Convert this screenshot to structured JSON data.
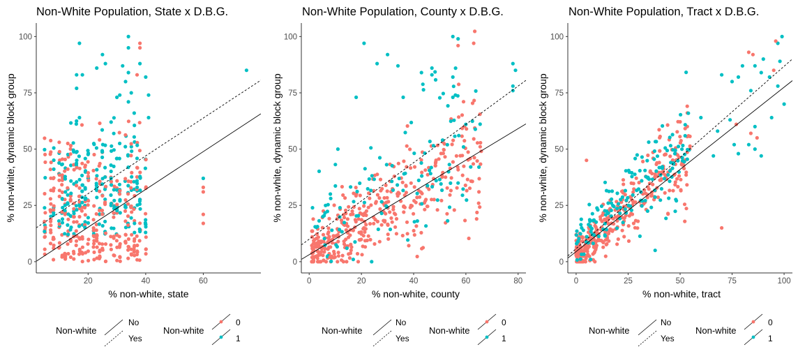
{
  "colors": {
    "group0": "#F8766D",
    "group1": "#00BFC4",
    "line": "#000000",
    "axis": "#333333"
  },
  "legend": {
    "line_title": "Non-white",
    "line_items": [
      "No",
      "Yes"
    ],
    "point_title": "Non-white",
    "point_items": [
      "0",
      "1"
    ]
  },
  "chart_data": [
    {
      "type": "scatter",
      "title": "Non-White Population, State x D.B.G.",
      "xlabel": "% non-white, state",
      "ylabel": "% non-white, dynamic block group",
      "xlim": [
        2,
        80
      ],
      "ylim": [
        -5,
        106
      ],
      "xticks": [
        20,
        40,
        60
      ],
      "yticks": [
        0,
        25,
        50,
        75,
        100
      ],
      "fit_lines": [
        {
          "name": "No",
          "style": "solid",
          "intercept": -1.5,
          "slope": 0.84
        },
        {
          "name": "Yes",
          "style": "dashed",
          "intercept": 13.4,
          "slope": 0.84
        }
      ],
      "x_values": [
        5,
        7,
        8,
        10,
        11,
        12,
        13,
        14,
        15,
        16,
        17,
        18,
        19,
        20,
        22,
        23,
        24,
        25,
        26,
        28,
        29,
        30,
        31,
        33,
        34,
        35,
        36,
        37,
        38,
        40
      ],
      "columns": [
        [
          0,
          0.3
        ],
        [
          0.1,
          0.1
        ],
        [
          0,
          0.3
        ],
        [
          0.05,
          0.3
        ],
        [
          0,
          0.35
        ],
        [
          0.05,
          0.4
        ],
        [
          0.05,
          0.4
        ],
        [
          0,
          0.45
        ],
        [
          0.1,
          0.45
        ],
        [
          0.1,
          0.55
        ],
        [
          0,
          0.5
        ],
        [
          0.05,
          0.6
        ],
        [
          0.1,
          0.5
        ],
        [
          0,
          0.55
        ],
        [
          0.05,
          0.55
        ],
        [
          0.05,
          0.55
        ],
        [
          0.1,
          0.55
        ],
        [
          0.1,
          0.6
        ],
        [
          0,
          0.6
        ],
        [
          0.15,
          0.6
        ],
        [
          0.1,
          0.65
        ],
        [
          0.2,
          0.55
        ],
        [
          0.2,
          0.6
        ],
        [
          0.05,
          0.55
        ],
        [
          0.15,
          0.55
        ],
        [
          0.1,
          0.6
        ],
        [
          0.1,
          0.65
        ],
        [
          0.05,
          0.65
        ],
        [
          0.1,
          0.65
        ],
        [
          0.2,
          0.6
        ]
      ],
      "extra_points": [
        {
          "x": 17,
          "y": 97,
          "g": 1
        },
        {
          "x": 16,
          "y": 83,
          "g": 1
        },
        {
          "x": 16,
          "y": 77,
          "g": 1
        },
        {
          "x": 18,
          "y": 83,
          "g": 1
        },
        {
          "x": 17,
          "y": 64,
          "g": 1
        },
        {
          "x": 23,
          "y": 86,
          "g": 1
        },
        {
          "x": 25,
          "y": 92,
          "g": 1
        },
        {
          "x": 26,
          "y": 88,
          "g": 1
        },
        {
          "x": 28,
          "y": 62,
          "g": 1
        },
        {
          "x": 30,
          "y": 73,
          "g": 1
        },
        {
          "x": 31,
          "y": 74,
          "g": 1
        },
        {
          "x": 32,
          "y": 87,
          "g": 1
        },
        {
          "x": 33,
          "y": 80,
          "g": 1
        },
        {
          "x": 34,
          "y": 100,
          "g": 1
        },
        {
          "x": 34,
          "y": 95,
          "g": 1
        },
        {
          "x": 34,
          "y": 84,
          "g": 1
        },
        {
          "x": 34,
          "y": 71,
          "g": 1
        },
        {
          "x": 35,
          "y": 75,
          "g": 1
        },
        {
          "x": 36,
          "y": 66,
          "g": 1
        },
        {
          "x": 37,
          "y": 83,
          "g": 0
        },
        {
          "x": 38,
          "y": 97,
          "g": 0
        },
        {
          "x": 38,
          "y": 95,
          "g": 0
        },
        {
          "x": 38,
          "y": 88,
          "g": 1
        },
        {
          "x": 40,
          "y": 82,
          "g": 1
        },
        {
          "x": 41,
          "y": 74,
          "g": 1
        },
        {
          "x": 41,
          "y": 64,
          "g": 1
        },
        {
          "x": 75,
          "y": 85,
          "g": 1
        },
        {
          "x": 60,
          "y": 37,
          "g": 1
        },
        {
          "x": 60,
          "y": 33,
          "g": 0
        },
        {
          "x": 60,
          "y": 31,
          "g": 0
        },
        {
          "x": 60,
          "y": 21,
          "g": 0
        },
        {
          "x": 60,
          "y": 17,
          "g": 0
        },
        {
          "x": 12,
          "y": 25,
          "g": 1
        },
        {
          "x": 11,
          "y": 28,
          "g": 1
        },
        {
          "x": 8,
          "y": 23,
          "g": 0
        }
      ]
    },
    {
      "type": "scatter",
      "title": "Non-White Population, County x D.B.G.",
      "xlabel": "% non-white, county",
      "ylabel": "% non-white, dynamic block group",
      "xlim": [
        -3,
        83
      ],
      "ylim": [
        -5,
        106
      ],
      "xticks": [
        0,
        20,
        40,
        60,
        80
      ],
      "yticks": [
        0,
        25,
        50,
        75,
        100
      ],
      "fit_lines": [
        {
          "name": "No",
          "style": "solid",
          "intercept": 3.1,
          "slope": 0.7
        },
        {
          "name": "Yes",
          "style": "dashed",
          "intercept": 10.0,
          "slope": 0.85
        }
      ],
      "cloud": {
        "seed": 7,
        "n0": 420,
        "n1": 120,
        "x_range": [
          1,
          66
        ],
        "intercept": 3.1,
        "slope": 0.7,
        "spread0": 10,
        "spread1": 14,
        "offset1": 10
      },
      "extra_points": [
        {
          "x": 55,
          "y": 100,
          "g": 1
        },
        {
          "x": 57,
          "y": 99,
          "g": 1
        },
        {
          "x": 57,
          "y": 96,
          "g": 0
        },
        {
          "x": 63,
          "y": 97,
          "g": 0
        },
        {
          "x": 21,
          "y": 97,
          "g": 1
        },
        {
          "x": 26,
          "y": 88,
          "g": 1
        },
        {
          "x": 30,
          "y": 92,
          "g": 1
        },
        {
          "x": 34,
          "y": 87,
          "g": 1
        },
        {
          "x": 43,
          "y": 84,
          "g": 1
        },
        {
          "x": 47,
          "y": 83,
          "g": 1
        },
        {
          "x": 47,
          "y": 86,
          "g": 1
        },
        {
          "x": 18,
          "y": 73,
          "g": 1
        },
        {
          "x": 36,
          "y": 73,
          "g": 1
        },
        {
          "x": 55,
          "y": 73,
          "g": 1
        },
        {
          "x": 56,
          "y": 74,
          "g": 1
        },
        {
          "x": 55,
          "y": 82,
          "g": 1
        },
        {
          "x": 78,
          "y": 88,
          "g": 1
        },
        {
          "x": 79,
          "y": 85,
          "g": 1
        },
        {
          "x": 78,
          "y": 78,
          "g": 1
        },
        {
          "x": 78,
          "y": 76,
          "g": 1
        },
        {
          "x": 65,
          "y": 31,
          "g": 0
        },
        {
          "x": 65,
          "y": 42,
          "g": 1
        },
        {
          "x": 11,
          "y": 50,
          "g": 1
        },
        {
          "x": 8,
          "y": 2,
          "g": 0
        }
      ]
    },
    {
      "type": "scatter",
      "title": "Non-White Population, Tract x D.B.G.",
      "xlabel": "% non-white, tract",
      "ylabel": "% non-white, dynamic block group",
      "xlim": [
        -4,
        104
      ],
      "ylim": [
        -5,
        106
      ],
      "xticks": [
        0,
        25,
        50,
        75,
        100
      ],
      "yticks": [
        0,
        25,
        50,
        75,
        100
      ],
      "fit_lines": [
        {
          "name": "No",
          "style": "solid",
          "intercept": 4.5,
          "slope": 0.73
        },
        {
          "name": "Yes",
          "style": "dashed",
          "intercept": 5.8,
          "slope": 0.81
        }
      ],
      "cloud": {
        "seed": 13,
        "n0": 380,
        "n1": 160,
        "x_range": [
          0,
          55
        ],
        "intercept": 3,
        "slope": 0.85,
        "spread0": 7,
        "spread1": 8,
        "offset1": 5
      },
      "extra_points": [
        {
          "x": 99,
          "y": 100,
          "g": 1
        },
        {
          "x": 97,
          "y": 97,
          "g": 1
        },
        {
          "x": 96,
          "y": 98,
          "g": 0
        },
        {
          "x": 90,
          "y": 90,
          "g": 1
        },
        {
          "x": 89,
          "y": 84,
          "g": 1
        },
        {
          "x": 93,
          "y": 82,
          "g": 1
        },
        {
          "x": 95,
          "y": 85,
          "g": 0
        },
        {
          "x": 98,
          "y": 89,
          "g": 1
        },
        {
          "x": 97,
          "y": 78,
          "g": 1
        },
        {
          "x": 100,
          "y": 70,
          "g": 1
        },
        {
          "x": 94,
          "y": 64,
          "g": 1
        },
        {
          "x": 83,
          "y": 93,
          "g": 0
        },
        {
          "x": 85,
          "y": 92,
          "g": 0
        },
        {
          "x": 86,
          "y": 87,
          "g": 1
        },
        {
          "x": 80,
          "y": 87,
          "g": 1
        },
        {
          "x": 78,
          "y": 82,
          "g": 1
        },
        {
          "x": 75,
          "y": 80,
          "g": 1
        },
        {
          "x": 70,
          "y": 83,
          "g": 1
        },
        {
          "x": 84,
          "y": 76,
          "g": 1
        },
        {
          "x": 86,
          "y": 60,
          "g": 1
        },
        {
          "x": 87,
          "y": 55,
          "g": 0
        },
        {
          "x": 84,
          "y": 57,
          "g": 0
        },
        {
          "x": 86,
          "y": 50,
          "g": 1
        },
        {
          "x": 89,
          "y": 47,
          "g": 1
        },
        {
          "x": 83,
          "y": 52,
          "g": 1
        },
        {
          "x": 78,
          "y": 48,
          "g": 1
        },
        {
          "x": 76,
          "y": 52,
          "g": 1
        },
        {
          "x": 74,
          "y": 63,
          "g": 1
        },
        {
          "x": 77,
          "y": 61,
          "g": 0
        },
        {
          "x": 68,
          "y": 58,
          "g": 1
        },
        {
          "x": 70,
          "y": 15,
          "g": 0
        },
        {
          "x": 60,
          "y": 64,
          "g": 1
        },
        {
          "x": 66,
          "y": 47,
          "g": 1
        },
        {
          "x": 38,
          "y": 5,
          "g": 1
        },
        {
          "x": 5,
          "y": 45,
          "g": 0
        },
        {
          "x": 7,
          "y": 1,
          "g": 1
        },
        {
          "x": 9,
          "y": 0,
          "g": 0
        }
      ]
    }
  ]
}
